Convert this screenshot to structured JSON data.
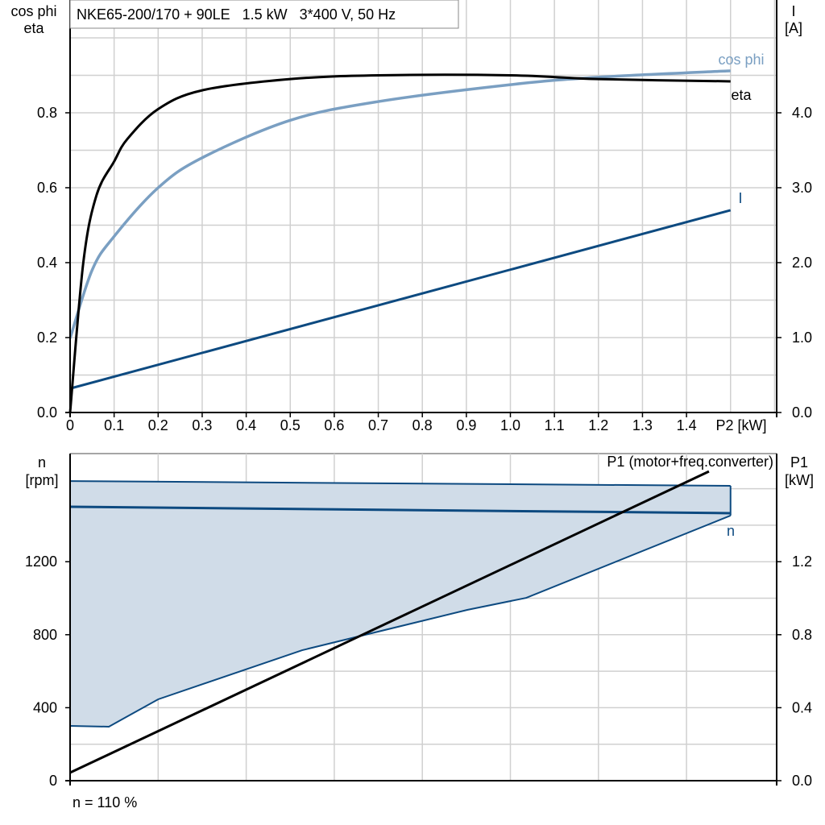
{
  "colors": {
    "eta": "#000000",
    "cos_phi": "#7a9fc2",
    "current": "#0d4a80",
    "speed": "#0d4a80",
    "speed_fill": "#d0dce8",
    "p1": "#000000",
    "grid": "#d0d0d0"
  },
  "chart_data": [
    {
      "type": "line",
      "title": "NKE65-200/170 + 90LE   1.5 kW   3*400 V, 50 Hz",
      "xlabel": "P2 [kW]",
      "ylabel_left": [
        "cos phi",
        "eta"
      ],
      "ylabel_right": [
        "I",
        "[A]"
      ],
      "xlim": [
        0,
        1.5
      ],
      "ylim_left": [
        0,
        1.0
      ],
      "ylim_right": [
        0,
        5.0
      ],
      "x_ticks": [
        "0",
        "0.1",
        "0.2",
        "0.3",
        "0.4",
        "0.5",
        "0.6",
        "0.7",
        "0.8",
        "0.9",
        "1.0",
        "1.1",
        "1.2",
        "1.3",
        "1.4"
      ],
      "y_ticks_left": [
        "0.0",
        "0.2",
        "0.4",
        "0.6",
        "0.8"
      ],
      "y_ticks_right": [
        "0.0",
        "1.0",
        "2.0",
        "3.0",
        "4.0"
      ],
      "grid": true,
      "series": [
        {
          "name": "eta",
          "axis": "left",
          "x": [
            0,
            0.03,
            0.06,
            0.1,
            0.13,
            0.2,
            0.3,
            0.5,
            0.7,
            1.0,
            1.2,
            1.5
          ],
          "y": [
            0,
            0.4,
            0.58,
            0.67,
            0.73,
            0.81,
            0.86,
            0.89,
            0.9,
            0.9,
            0.89,
            0.884
          ]
        },
        {
          "name": "cos phi",
          "axis": "left",
          "x": [
            0,
            0.05,
            0.1,
            0.2,
            0.3,
            0.5,
            0.7,
            1.0,
            1.2,
            1.5
          ],
          "y": [
            0.198,
            0.38,
            0.47,
            0.6,
            0.68,
            0.78,
            0.83,
            0.875,
            0.895,
            0.912
          ]
        },
        {
          "name": "I",
          "axis": "right",
          "x": [
            0,
            1.5
          ],
          "y": [
            0.32,
            2.7
          ]
        }
      ]
    },
    {
      "type": "area",
      "ylabel_left": [
        "n",
        "[rpm]"
      ],
      "ylabel_right": [
        "P1",
        "[kW]"
      ],
      "xlim": [
        0,
        1.5
      ],
      "ylim_left": [
        0,
        1792
      ],
      "ylim_right": [
        0,
        1.792
      ],
      "y_ticks_left": [
        "0",
        "400",
        "800",
        "1200"
      ],
      "y_ticks_right": [
        "0.0",
        "0.4",
        "0.8",
        "1.2"
      ],
      "grid": true,
      "footnote": "n = 110 %",
      "series": [
        {
          "name": "n",
          "axis": "left",
          "x": [
            0,
            1.5
          ],
          "y": [
            1501,
            1466
          ]
        },
        {
          "role": "speed range upper",
          "axis": "left",
          "x": [
            0,
            1.5
          ],
          "y": [
            1642,
            1616
          ]
        },
        {
          "role": "speed range lower",
          "axis": "left",
          "x": [
            0,
            0.088,
            0.2,
            0.527,
            0.902,
            1.036,
            1.5
          ],
          "y": [
            300,
            296,
            446,
            715,
            936,
            1002,
            1453
          ]
        },
        {
          "name": "P1 (motor+freq.converter)",
          "axis": "right",
          "x": [
            0,
            1.451
          ],
          "y": [
            0.044,
            1.695
          ]
        }
      ]
    }
  ]
}
